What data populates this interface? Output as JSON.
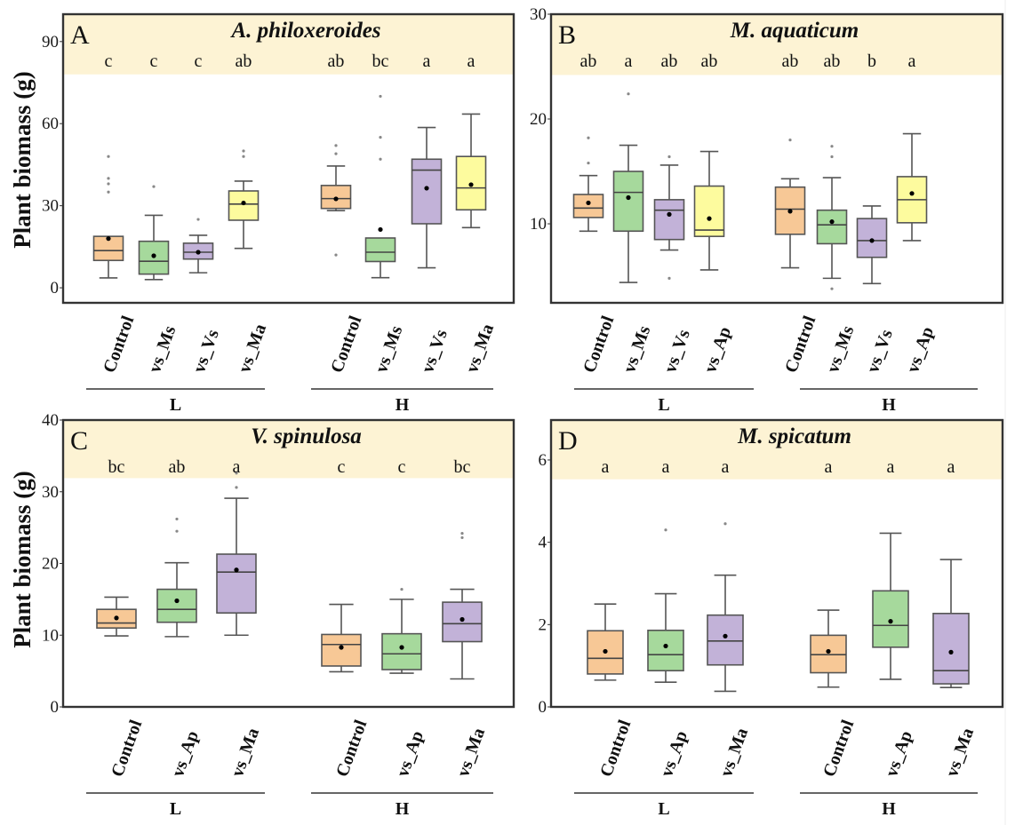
{
  "figure": {
    "ylabel": "Plant biomass (g)",
    "colors": {
      "Control": "#f7c896",
      "vs_Ms": "#a6d99c",
      "vs_Vs": "#c2b2d8",
      "vs_Ma_yellow": "#fdfb9e",
      "vs_Ap_yellow": "#fdfb9e",
      "band": "#fdf3d4",
      "frame": "#333333",
      "whisker": "#555555",
      "outlier": "#888888",
      "mean": "#000000"
    }
  },
  "chart_data": [
    {
      "type": "box",
      "panel": "A",
      "title": "A. philoxeroides",
      "ylabel": "Plant biomass (g)",
      "ylim": [
        -5.5,
        100
      ],
      "yticks": [
        0,
        30,
        60,
        90
      ],
      "band_from": 78,
      "groups": [
        "L",
        "H"
      ],
      "categories": [
        "Control",
        "vs_Ms",
        "vs_Vs",
        "vs_Ma"
      ],
      "fill_keys": [
        "Control",
        "vs_Ms",
        "vs_Vs",
        "vs_Ma_yellow"
      ],
      "boxes": [
        {
          "group": "L",
          "category": "Control",
          "sig": "c",
          "min": 3.6,
          "q1": 10.0,
          "median": 13.6,
          "q3": 18.8,
          "max": 18.8,
          "mean": 18.0,
          "outliers": [
            48,
            40,
            38,
            35
          ]
        },
        {
          "group": "L",
          "category": "vs_Ms",
          "sig": "c",
          "min": 3.0,
          "q1": 5.0,
          "median": 9.7,
          "q3": 17.0,
          "max": 26.5,
          "mean": 11.7,
          "outliers": [
            37
          ]
        },
        {
          "group": "L",
          "category": "vs_Vs",
          "sig": "c",
          "min": 5.5,
          "q1": 10.5,
          "median": 13.0,
          "q3": 16.3,
          "max": 19.2,
          "mean": 13.0,
          "outliers": [
            25
          ]
        },
        {
          "group": "L",
          "category": "vs_Ma",
          "sig": "ab",
          "min": 14.4,
          "q1": 24.7,
          "median": 30.6,
          "q3": 35.4,
          "max": 39.0,
          "mean": 31.0,
          "outliers": [
            50,
            48
          ]
        },
        {
          "group": "H",
          "category": "Control",
          "sig": "ab",
          "min": 28.2,
          "q1": 29.0,
          "median": 32.6,
          "q3": 37.4,
          "max": 44.5,
          "mean": 32.5,
          "outliers": [
            52,
            49,
            12
          ]
        },
        {
          "group": "H",
          "category": "vs_Ms",
          "sig": "bc",
          "min": 3.7,
          "q1": 9.6,
          "median": 13.0,
          "q3": 18.2,
          "max": 18.2,
          "mean": 21.3,
          "outliers": [
            70,
            55,
            47
          ]
        },
        {
          "group": "H",
          "category": "vs_Vs",
          "sig": "a",
          "min": 7.3,
          "q1": 23.4,
          "median": 43.0,
          "q3": 47.0,
          "max": 58.6,
          "mean": 36.4,
          "outliers": []
        },
        {
          "group": "H",
          "category": "vs_Ma",
          "sig": "a",
          "min": 22.0,
          "q1": 28.5,
          "median": 36.5,
          "q3": 48.0,
          "max": 63.5,
          "mean": 37.7,
          "outliers": []
        }
      ]
    },
    {
      "type": "box",
      "panel": "B",
      "title": "M. aquaticum",
      "ylabel": "",
      "ylim": [
        2.46,
        30
      ],
      "yticks": [
        10,
        20,
        30
      ],
      "band_from": 24.2,
      "groups": [
        "L",
        "H"
      ],
      "categories": [
        "Control",
        "vs_Ms",
        "vs_Vs",
        "vs_Ap"
      ],
      "fill_keys": [
        "Control",
        "vs_Ms",
        "vs_Vs",
        "vs_Ap_yellow"
      ],
      "boxes": [
        {
          "group": "L",
          "category": "Control",
          "sig": "ab",
          "min": 9.3,
          "q1": 10.6,
          "median": 11.5,
          "q3": 12.8,
          "max": 14.6,
          "mean": 12.0,
          "outliers": [
            18.2,
            15.8
          ]
        },
        {
          "group": "L",
          "category": "vs_Ms",
          "sig": "a",
          "min": 4.4,
          "q1": 9.3,
          "median": 13.0,
          "q3": 15.0,
          "max": 17.5,
          "mean": 12.5,
          "outliers": [
            22.4
          ]
        },
        {
          "group": "L",
          "category": "vs_Vs",
          "sig": "ab",
          "min": 7.5,
          "q1": 8.5,
          "median": 11.3,
          "q3": 12.3,
          "max": 15.6,
          "mean": 10.9,
          "outliers": [
            16.4,
            4.8
          ]
        },
        {
          "group": "L",
          "category": "vs_Ap",
          "sig": "ab",
          "min": 5.6,
          "q1": 8.8,
          "median": 9.4,
          "q3": 13.6,
          "max": 16.9,
          "mean": 10.5,
          "outliers": []
        },
        {
          "group": "H",
          "category": "Control",
          "sig": "ab",
          "min": 5.8,
          "q1": 9.0,
          "median": 11.4,
          "q3": 13.5,
          "max": 14.3,
          "mean": 11.2,
          "outliers": [
            18.0
          ]
        },
        {
          "group": "H",
          "category": "vs_Ms",
          "sig": "ab",
          "min": 4.8,
          "q1": 8.1,
          "median": 9.9,
          "q3": 11.3,
          "max": 14.4,
          "mean": 10.2,
          "outliers": [
            17.4,
            16.4,
            3.8
          ]
        },
        {
          "group": "H",
          "category": "vs_Vs",
          "sig": "b",
          "min": 4.3,
          "q1": 6.8,
          "median": 8.4,
          "q3": 10.5,
          "max": 11.7,
          "mean": 8.4,
          "outliers": []
        },
        {
          "group": "H",
          "category": "vs_Ap",
          "sig": "a",
          "min": 8.4,
          "q1": 10.1,
          "median": 12.3,
          "q3": 14.5,
          "max": 18.6,
          "mean": 12.9,
          "outliers": []
        }
      ]
    },
    {
      "type": "box",
      "panel": "C",
      "title": "V. spinulosa",
      "ylabel": "Plant biomass (g)",
      "ylim": [
        0,
        40
      ],
      "yticks": [
        0,
        10,
        20,
        30,
        40
      ],
      "band_from": 31.9,
      "groups": [
        "L",
        "H"
      ],
      "categories": [
        "Control",
        "vs_Ap",
        "vs_Ma"
      ],
      "fill_keys": [
        "Control",
        "vs_Ms",
        "vs_Vs"
      ],
      "boxes": [
        {
          "group": "L",
          "category": "Control",
          "sig": "bc",
          "min": 9.9,
          "q1": 11.0,
          "median": 11.7,
          "q3": 13.6,
          "max": 15.3,
          "mean": 12.4,
          "outliers": []
        },
        {
          "group": "L",
          "category": "vs_Ap",
          "sig": "ab",
          "min": 9.8,
          "q1": 11.8,
          "median": 13.6,
          "q3": 16.4,
          "max": 20.1,
          "mean": 14.8,
          "outliers": [
            26.2,
            24.5
          ]
        },
        {
          "group": "L",
          "category": "vs_Ma",
          "sig": "a",
          "min": 10.0,
          "q1": 13.1,
          "median": 18.8,
          "q3": 21.3,
          "max": 29.1,
          "mean": 19.1,
          "outliers": [
            30.6,
            32.6
          ]
        },
        {
          "group": "H",
          "category": "Control",
          "sig": "c",
          "min": 4.9,
          "q1": 5.7,
          "median": 8.7,
          "q3": 10.1,
          "max": 14.3,
          "mean": 8.3,
          "outliers": []
        },
        {
          "group": "H",
          "category": "vs_Ap",
          "sig": "c",
          "min": 4.7,
          "q1": 5.2,
          "median": 7.4,
          "q3": 10.2,
          "max": 15.0,
          "mean": 8.3,
          "outliers": [
            16.4
          ]
        },
        {
          "group": "H",
          "category": "vs_Ma",
          "sig": "bc",
          "min": 3.9,
          "q1": 9.1,
          "median": 11.6,
          "q3": 14.6,
          "max": 16.4,
          "mean": 12.2,
          "outliers": [
            24.2,
            23.6
          ]
        }
      ]
    },
    {
      "type": "box",
      "panel": "D",
      "title": "M. spicatum",
      "ylabel": "",
      "ylim": [
        0,
        6.97
      ],
      "yticks": [
        0,
        2,
        4,
        6
      ],
      "band_from": 5.53,
      "groups": [
        "L",
        "H"
      ],
      "categories": [
        "Control",
        "vs_Ap",
        "vs_Ma"
      ],
      "fill_keys": [
        "Control",
        "vs_Ms",
        "vs_Vs"
      ],
      "boxes": [
        {
          "group": "L",
          "category": "Control",
          "sig": "a",
          "min": 0.65,
          "q1": 0.8,
          "median": 1.18,
          "q3": 1.85,
          "max": 2.5,
          "mean": 1.35,
          "outliers": []
        },
        {
          "group": "L",
          "category": "vs_Ap",
          "sig": "a",
          "min": 0.6,
          "q1": 0.88,
          "median": 1.27,
          "q3": 1.86,
          "max": 2.75,
          "mean": 1.48,
          "outliers": [
            4.3
          ]
        },
        {
          "group": "L",
          "category": "vs_Ma",
          "sig": "a",
          "min": 0.38,
          "q1": 1.02,
          "median": 1.6,
          "q3": 2.23,
          "max": 3.2,
          "mean": 1.72,
          "outliers": [
            4.45
          ]
        },
        {
          "group": "H",
          "category": "Control",
          "sig": "a",
          "min": 0.48,
          "q1": 0.83,
          "median": 1.27,
          "q3": 1.74,
          "max": 2.35,
          "mean": 1.35,
          "outliers": []
        },
        {
          "group": "H",
          "category": "vs_Ap",
          "sig": "a",
          "min": 0.67,
          "q1": 1.45,
          "median": 1.98,
          "q3": 2.82,
          "max": 4.22,
          "mean": 2.08,
          "outliers": []
        },
        {
          "group": "H",
          "category": "vs_Ma",
          "sig": "a",
          "min": 0.47,
          "q1": 0.56,
          "median": 0.88,
          "q3": 2.27,
          "max": 3.58,
          "mean": 1.33,
          "outliers": []
        }
      ]
    }
  ]
}
